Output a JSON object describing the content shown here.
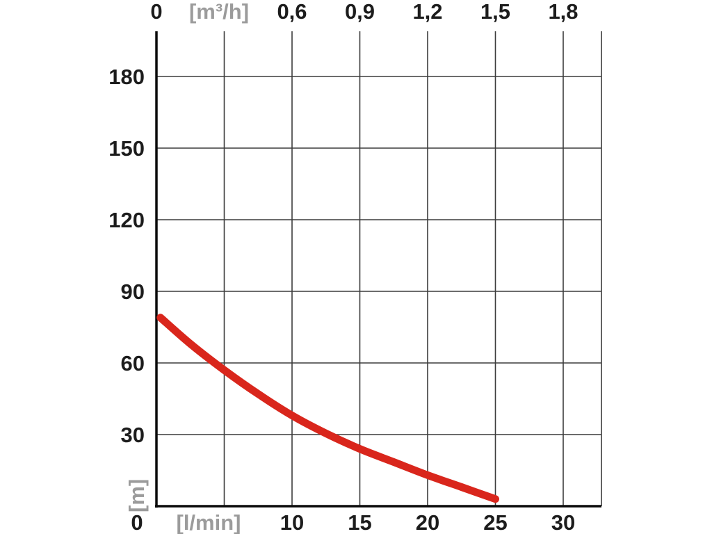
{
  "chart_data": {
    "type": "line",
    "title": "",
    "x_axis_bottom": {
      "unit_label": "[l/min]",
      "origin_label": "0",
      "tick_labels": [
        "10",
        "15",
        "20",
        "25",
        "30"
      ],
      "tick_values": [
        10,
        15,
        20,
        25,
        30
      ],
      "range_lmin": [
        0,
        32.8
      ]
    },
    "x_axis_top": {
      "unit_label": "[m³/h]",
      "origin_label": "0",
      "tick_labels": [
        "0,6",
        "0,9",
        "1,2",
        "1,5",
        "1,8"
      ],
      "tick_values_lmin": [
        10,
        15,
        20,
        25,
        30
      ],
      "range_m3h": [
        0,
        1.97
      ]
    },
    "y_axis_left": {
      "unit_label": "[m]",
      "tick_labels": [
        "30",
        "60",
        "90",
        "120",
        "150",
        "180"
      ],
      "tick_values": [
        30,
        60,
        90,
        120,
        150,
        180
      ],
      "range_m": [
        0,
        199
      ]
    },
    "grid": {
      "show": true,
      "x_step_lmin": 5,
      "y_step_m": 30
    },
    "legend": {
      "show": false
    },
    "series": [
      {
        "name": "pump-head-curve",
        "color": "#d9261c",
        "stroke_width": 11,
        "points_lmin_m": [
          [
            0.3,
            79
          ],
          [
            2.5,
            68
          ],
          [
            5,
            57
          ],
          [
            7.5,
            47
          ],
          [
            10,
            38
          ],
          [
            12.5,
            30.5
          ],
          [
            15,
            24
          ],
          [
            17.5,
            18.5
          ],
          [
            20,
            13
          ],
          [
            22.5,
            8
          ],
          [
            25,
            3
          ]
        ]
      }
    ],
    "colors": {
      "background": "#ffffff",
      "grid": "#3c3c3c",
      "axis": "#0a0a0a",
      "tick_label": "#1c1c1c",
      "unit_label": "#9b9b9b",
      "curve": "#d9261c"
    }
  }
}
